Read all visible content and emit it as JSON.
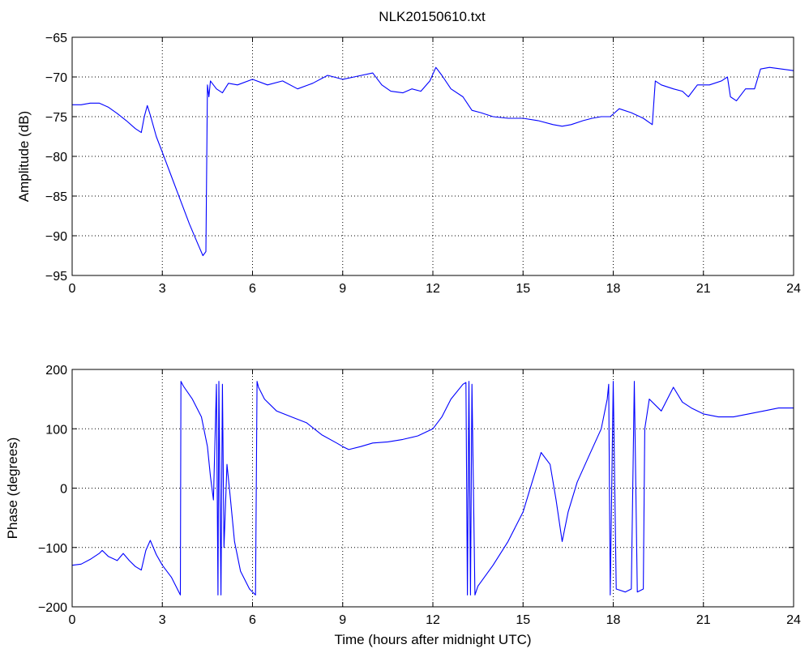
{
  "chart_data": [
    {
      "type": "line",
      "title": "NLK20150610.txt",
      "xlabel": "",
      "ylabel": "Amplitude (dB)",
      "xlim": [
        0,
        24
      ],
      "ylim": [
        -95,
        -65
      ],
      "xticks": [
        0,
        3,
        6,
        9,
        12,
        15,
        18,
        21,
        24
      ],
      "yticks": [
        -95,
        -90,
        -85,
        -80,
        -75,
        -70,
        -65
      ],
      "xtick_labels": [
        "0",
        "3",
        "6",
        "9",
        "12",
        "15",
        "18",
        "21",
        "24"
      ],
      "ytick_labels": [
        "−95",
        "−90",
        "−85",
        "−80",
        "−75",
        "−70",
        "−65"
      ],
      "grid": true,
      "line_color": "#0000ff",
      "series": [
        {
          "x": [
            0,
            0.3,
            0.6,
            0.9,
            1.2,
            1.5,
            1.8,
            2.1,
            2.3,
            2.4,
            2.5,
            2.6,
            2.8,
            3.0,
            3.3,
            3.6,
            3.9,
            4.2,
            4.35,
            4.45,
            4.5,
            4.55,
            4.6,
            4.8,
            5.0,
            5.2,
            5.5,
            6.0,
            6.5,
            7.0,
            7.5,
            8.0,
            8.5,
            9.0,
            9.5,
            10.0,
            10.3,
            10.6,
            11.0,
            11.3,
            11.6,
            11.9,
            12.1,
            12.3,
            12.6,
            13.0,
            13.3,
            13.6,
            14.0,
            14.5,
            15.0,
            15.5,
            16.0,
            16.3,
            16.6,
            17.0,
            17.3,
            17.6,
            17.9,
            18.2,
            18.6,
            19.0,
            19.3,
            19.4,
            19.6,
            20.0,
            20.3,
            20.5,
            20.8,
            21.2,
            21.6,
            21.8,
            21.9,
            22.1,
            22.4,
            22.7,
            22.9,
            23.2,
            23.6,
            24.0
          ],
          "y": [
            -73.5,
            -73.5,
            -73.3,
            -73.3,
            -73.8,
            -74.6,
            -75.5,
            -76.5,
            -77.0,
            -75.0,
            -73.6,
            -74.8,
            -77.5,
            -79.5,
            -82.5,
            -85.5,
            -88.5,
            -91.2,
            -92.5,
            -92.0,
            -71.0,
            -72.5,
            -70.5,
            -71.5,
            -72.0,
            -70.8,
            -71.0,
            -70.3,
            -71.0,
            -70.5,
            -71.5,
            -70.8,
            -69.8,
            -70.3,
            -69.9,
            -69.5,
            -71.0,
            -71.8,
            -72.0,
            -71.5,
            -71.8,
            -70.5,
            -68.8,
            -69.8,
            -71.5,
            -72.5,
            -74.2,
            -74.5,
            -75.0,
            -75.2,
            -75.2,
            -75.5,
            -76.0,
            -76.2,
            -76.0,
            -75.5,
            -75.2,
            -75.0,
            -75.0,
            -74.0,
            -74.5,
            -75.2,
            -76.0,
            -70.5,
            -71.0,
            -71.5,
            -71.8,
            -72.5,
            -71.0,
            -71.0,
            -70.5,
            -70.0,
            -72.5,
            -73.0,
            -71.5,
            -71.5,
            -69.0,
            -68.8,
            -69.0,
            -69.2
          ]
        }
      ]
    },
    {
      "type": "line",
      "title": "",
      "xlabel": "Time (hours after midnight UTC)",
      "ylabel": "Phase (degrees)",
      "xlim": [
        0,
        24
      ],
      "ylim": [
        -200,
        200
      ],
      "xticks": [
        0,
        3,
        6,
        9,
        12,
        15,
        18,
        21,
        24
      ],
      "yticks": [
        -200,
        -100,
        0,
        100,
        200
      ],
      "xtick_labels": [
        "0",
        "3",
        "6",
        "9",
        "12",
        "15",
        "18",
        "21",
        "24"
      ],
      "ytick_labels": [
        "−200",
        "−100",
        "0",
        "100",
        "200"
      ],
      "grid": true,
      "line_color": "#0000ff",
      "series": [
        {
          "x": [
            0,
            0.3,
            0.6,
            0.9,
            1.0,
            1.2,
            1.5,
            1.7,
            1.9,
            2.1,
            2.3,
            2.45,
            2.6,
            2.8,
            3.0,
            3.3,
            3.6,
            3.62,
            3.7,
            4.0,
            4.3,
            4.5,
            4.6,
            4.7,
            4.8,
            4.85,
            4.88,
            4.95,
            5.0,
            5.05,
            5.15,
            5.25,
            5.4,
            5.6,
            5.9,
            6.1,
            6.15,
            6.2,
            6.4,
            6.8,
            7.3,
            7.8,
            8.3,
            8.8,
            9.0,
            9.2,
            9.6,
            10.0,
            10.5,
            11.0,
            11.5,
            12.0,
            12.3,
            12.6,
            13.0,
            13.1,
            13.15,
            13.2,
            13.25,
            13.3,
            13.4,
            13.5,
            14.0,
            14.5,
            15.0,
            15.3,
            15.6,
            15.9,
            16.1,
            16.3,
            16.5,
            16.8,
            17.2,
            17.6,
            17.8,
            17.85,
            17.9,
            18.0,
            18.1,
            18.4,
            18.6,
            18.7,
            18.8,
            19.0,
            19.05,
            19.2,
            19.6,
            20.0,
            20.3,
            20.6,
            21.0,
            21.5,
            22.0,
            22.5,
            23.0,
            23.5,
            24.0
          ],
          "y": [
            -130,
            -128,
            -120,
            -110,
            -105,
            -115,
            -122,
            -110,
            -122,
            -132,
            -138,
            -105,
            -88,
            -112,
            -130,
            -150,
            -180,
            180,
            172,
            150,
            120,
            70,
            20,
            -20,
            175,
            -180,
            180,
            -180,
            175,
            -100,
            40,
            -10,
            -90,
            -140,
            -170,
            -180,
            180,
            170,
            150,
            130,
            120,
            110,
            90,
            76,
            70,
            65,
            70,
            76,
            78,
            82,
            88,
            100,
            120,
            150,
            175,
            178,
            -180,
            180,
            -180,
            175,
            -180,
            -165,
            -130,
            -90,
            -40,
            10,
            60,
            40,
            -20,
            -90,
            -40,
            10,
            55,
            100,
            150,
            175,
            -180,
            180,
            -170,
            -175,
            -170,
            180,
            -175,
            -170,
            100,
            150,
            130,
            170,
            145,
            135,
            125,
            120,
            120,
            125,
            130,
            135,
            135
          ]
        }
      ]
    }
  ]
}
